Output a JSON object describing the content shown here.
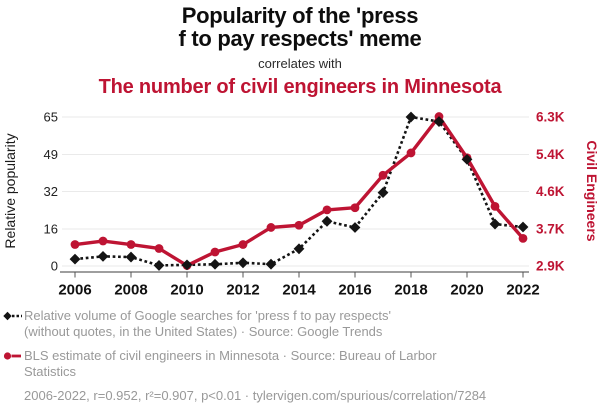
{
  "header": {
    "title_line1": "Popularity of the 'press",
    "title_line2": "f to pay respects' meme",
    "connector": "correlates with",
    "subtitle": "The number of civil engineers in Minnesota"
  },
  "chart_data": {
    "type": "line",
    "x": [
      2006,
      2007,
      2008,
      2009,
      2010,
      2011,
      2012,
      2013,
      2014,
      2015,
      2016,
      2017,
      2018,
      2019,
      2020,
      2021,
      2022
    ],
    "x_ticks": [
      2006,
      2008,
      2010,
      2012,
      2014,
      2016,
      2018,
      2020,
      2022
    ],
    "series": [
      {
        "id": "searches",
        "name": "Relative volume of Google searches for 'press f to pay respects'",
        "axis": "left",
        "style": "dotted",
        "marker": "diamond",
        "color": "#141414",
        "values": [
          3,
          4.2,
          3.9,
          0.25,
          0.5,
          0.75,
          1.4,
          0.8,
          7.5,
          19.5,
          16.8,
          32,
          65,
          63,
          46.5,
          18.3,
          17
        ]
      },
      {
        "id": "engineers",
        "name": "BLS estimate of civil engineers in Minnesota",
        "axis": "right",
        "style": "solid",
        "marker": "circle",
        "color": "#be1433",
        "values": [
          3390,
          3470,
          3390,
          3300,
          2910,
          3220,
          3390,
          3780,
          3830,
          4180,
          4230,
          4970,
          5480,
          6310,
          5370,
          4260,
          3530
        ]
      }
    ],
    "left_axis": {
      "label": "Relative popularity",
      "range": [
        0,
        65
      ],
      "tick_values": [
        0,
        16.25,
        32.5,
        48.75,
        65
      ],
      "tick_labels": [
        "0",
        "16",
        "32",
        "49",
        "65"
      ]
    },
    "right_axis": {
      "label": "Civil Engineers",
      "range": [
        2900,
        6300
      ],
      "tick_values": [
        2900,
        3750,
        4600,
        5450,
        6300
      ],
      "tick_labels": [
        "2.9K",
        "3.7K",
        "4.6K",
        "5.4K",
        "6.3K"
      ]
    },
    "grid": true,
    "legend_position": "bottom"
  },
  "legend": [
    {
      "marker": "black-diamond-dotted-line",
      "lines": [
        "Relative volume of Google searches for 'press f to pay respects'",
        "(without quotes, in the United States) · Source: Google Trends"
      ]
    },
    {
      "marker": "red-circle-solid-line",
      "lines": [
        "BLS estimate of civil engineers in Minnesota · Source: Bureau of Larbor",
        "Statistics"
      ]
    }
  ],
  "footer": "2006-2022, r=0.952, r²=0.907, p<0.01 · tylervigen.com/spurious/correlation/7284",
  "colors": {
    "red": "#be1433",
    "black": "#141414",
    "grid": "#eaeaea",
    "axis_line": "#3c3c3c",
    "tick": "#555555",
    "muted_text": "#999999"
  }
}
